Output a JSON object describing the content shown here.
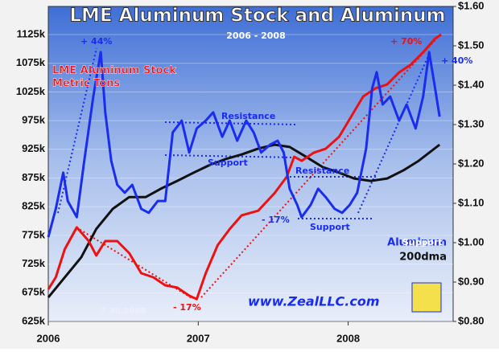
{
  "chart_data": {
    "type": "line",
    "title": "LME Aluminum Stock and Aluminum",
    "subtitle": "2006 - 2008",
    "xlim": [
      2006,
      2008.7
    ],
    "xticks": [
      2006,
      2007,
      2008
    ],
    "ylim": [
      625000,
      1174000
    ],
    "yticks": [
      {
        "value": 625000,
        "label": "625k"
      },
      {
        "value": 675000,
        "label": "675k"
      },
      {
        "value": 725000,
        "label": "725k"
      },
      {
        "value": 775000,
        "label": "775k"
      },
      {
        "value": 825000,
        "label": "825k"
      },
      {
        "value": 875000,
        "label": "875k"
      },
      {
        "value": 925000,
        "label": "925k"
      },
      {
        "value": 975000,
        "label": "975k"
      },
      {
        "value": 1025000,
        "label": "1025k"
      },
      {
        "value": 1075000,
        "label": "1075k"
      },
      {
        "value": 1125000,
        "label": "1125k"
      }
    ],
    "y2lim": [
      0.8,
      1.6
    ],
    "y2ticks": [
      {
        "value": 0.8,
        "label": "$0.80"
      },
      {
        "value": 0.9,
        "label": "$0.90"
      },
      {
        "value": 1.0,
        "label": "$1.00"
      },
      {
        "value": 1.1,
        "label": "$1.10"
      },
      {
        "value": 1.2,
        "label": "$1.20"
      },
      {
        "value": 1.3,
        "label": "$1.30"
      },
      {
        "value": 1.4,
        "label": "$1.40"
      },
      {
        "value": 1.5,
        "label": "$1.50"
      },
      {
        "value": 1.6,
        "label": "$1.60"
      }
    ],
    "grid": true,
    "series": [
      {
        "name": "LME Aluminum Stock",
        "color": "#ee1111",
        "x": [
          2006.0,
          2006.05,
          2006.11,
          2006.19,
          2006.27,
          2006.32,
          2006.38,
          2006.46,
          2006.54,
          2006.62,
          2006.7,
          2006.78,
          2006.86,
          2006.94,
          2006.99,
          2007.05,
          2007.13,
          2007.21,
          2007.29,
          2007.4,
          2007.51,
          2007.59,
          2007.64,
          2007.69,
          2007.77,
          2007.85,
          2007.94,
          2008.02,
          2008.1,
          2008.18,
          2008.26,
          2008.34,
          2008.42,
          2008.5,
          2008.58,
          2008.62
        ],
        "values": [
          681000,
          702000,
          751000,
          789000,
          765000,
          740000,
          765000,
          765000,
          744000,
          709000,
          702000,
          688000,
          684000,
          670000,
          664000,
          709000,
          758000,
          786000,
          810000,
          818000,
          849000,
          877000,
          912000,
          905000,
          919000,
          926000,
          947000,
          982000,
          1017000,
          1031000,
          1038000,
          1059000,
          1073000,
          1094000,
          1118000,
          1125000
        ]
      },
      {
        "name": "Aluminum",
        "color": "#1a2cee",
        "axis": "y2",
        "x": [
          2006.0,
          2006.05,
          2006.1,
          2006.13,
          2006.19,
          2006.24,
          2006.3,
          2006.35,
          2006.38,
          2006.42,
          2006.46,
          2006.51,
          2006.56,
          2006.62,
          2006.67,
          2006.73,
          2006.78,
          2006.83,
          2006.89,
          2006.94,
          2006.99,
          2007.05,
          2007.1,
          2007.16,
          2007.21,
          2007.26,
          2007.32,
          2007.37,
          2007.42,
          2007.48,
          2007.53,
          2007.57,
          2007.61,
          2007.66,
          2007.69,
          2007.75,
          2007.8,
          2007.85,
          2007.91,
          2007.96,
          2008.01,
          2008.06,
          2008.12,
          2008.16,
          2008.19,
          2008.23,
          2008.28,
          2008.34,
          2008.39,
          2008.45,
          2008.5,
          2008.54,
          2008.58,
          2008.61
        ],
        "values": [
          1.014,
          1.086,
          1.178,
          1.106,
          1.065,
          1.208,
          1.371,
          1.484,
          1.331,
          1.208,
          1.147,
          1.127,
          1.147,
          1.086,
          1.076,
          1.106,
          1.106,
          1.28,
          1.31,
          1.229,
          1.29,
          1.31,
          1.331,
          1.269,
          1.31,
          1.259,
          1.31,
          1.28,
          1.229,
          1.249,
          1.259,
          1.229,
          1.137,
          1.096,
          1.065,
          1.096,
          1.137,
          1.116,
          1.086,
          1.076,
          1.096,
          1.127,
          1.239,
          1.392,
          1.433,
          1.351,
          1.371,
          1.31,
          1.351,
          1.29,
          1.371,
          1.484,
          1.392,
          1.32
        ]
      },
      {
        "name": "200dma",
        "color": "#111111",
        "axis": "y2",
        "x": [
          2006.0,
          2006.11,
          2006.22,
          2006.32,
          2006.43,
          2006.54,
          2006.65,
          2006.75,
          2006.86,
          2006.97,
          2007.08,
          2007.18,
          2007.29,
          2007.4,
          2007.51,
          2007.61,
          2007.72,
          2007.83,
          2007.94,
          2008.04,
          2008.15,
          2008.26,
          2008.37,
          2008.47,
          2008.61
        ],
        "values": [
          0.861,
          0.912,
          0.963,
          1.035,
          1.086,
          1.116,
          1.116,
          1.137,
          1.157,
          1.178,
          1.198,
          1.212,
          1.224,
          1.239,
          1.249,
          1.243,
          1.218,
          1.192,
          1.178,
          1.163,
          1.157,
          1.163,
          1.184,
          1.208,
          1.249
        ]
      }
    ],
    "unit_label": "Metric Tons",
    "annotations": [
      "+ 44%",
      "+ 70%",
      "+ 40%",
      "- 17%",
      "- 17%",
      "Resistance",
      "Support",
      "Resistance",
      "Support",
      "Support",
      "7.30.2008",
      "www.ZealLLC.com"
    ]
  }
}
